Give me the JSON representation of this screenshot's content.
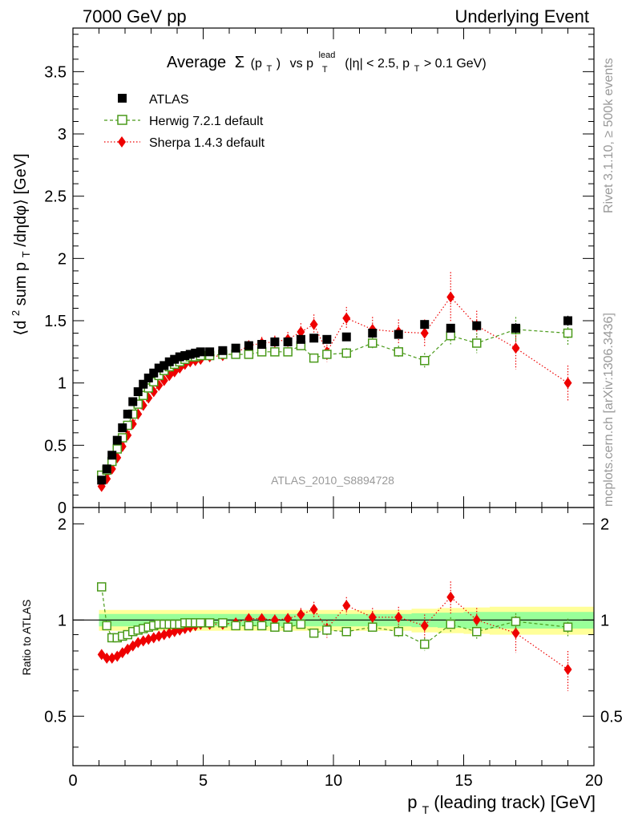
{
  "header": {
    "left": "7000 GeV pp",
    "right": "Underlying Event"
  },
  "side": {
    "rivet": "Rivet 3.1.10, ≥ 500k events",
    "mcplots": "mcplots.cern.ch [arXiv:1306.3436]"
  },
  "colors": {
    "atlas": "#000000",
    "herwig": "#4a9a1a",
    "sherpa": "#ee0000",
    "band_inner": "#99ff99",
    "band_outer": "#ffff99"
  },
  "chart_data": [
    {
      "type": "scatter",
      "title_main": "Average",
      "title_sigma": "Σ",
      "title_pt_arg": "(p",
      "title_pt_arg_sub": "T",
      "title_pt_arg_close": ")",
      "title_vs": "vs p",
      "title_vs_sub": "T",
      "title_vs_sup": "lead",
      "title_cuts": "(|η| < 2.5, p",
      "title_cuts_sub": "T",
      "title_cuts_tail": " > 0.1 GeV)",
      "ylabel": "⟨d² sum p_T/dηdφ⟩ [GeV]",
      "ylabel_a": "⟨d",
      "ylabel_sup": "2",
      "ylabel_b": " sum p",
      "ylabel_sub": "T",
      "ylabel_c": "/dηdφ⟩ [GeV]",
      "watermark": "ATLAS_2010_S8894728",
      "xlim": [
        0,
        20
      ],
      "ylim": [
        0,
        3.85
      ],
      "yticks": [
        "0",
        "0.5",
        "1",
        "1.5",
        "2",
        "2.5",
        "3",
        "3.5"
      ],
      "legend": [
        {
          "name": "ATLAS"
        },
        {
          "name": "Herwig 7.2.1 default"
        },
        {
          "name": "Sherpa 1.4.3 default"
        }
      ],
      "x": [
        1.1,
        1.3,
        1.5,
        1.7,
        1.9,
        2.1,
        2.3,
        2.5,
        2.7,
        2.9,
        3.1,
        3.3,
        3.5,
        3.7,
        3.9,
        4.1,
        4.3,
        4.5,
        4.7,
        4.9,
        5.25,
        5.75,
        6.25,
        6.75,
        7.25,
        7.75,
        8.25,
        8.75,
        9.25,
        9.75,
        10.5,
        11.5,
        12.5,
        13.5,
        14.5,
        15.5,
        17.0,
        19.0
      ],
      "series": [
        {
          "name": "ATLAS",
          "values": [
            0.22,
            0.31,
            0.42,
            0.54,
            0.64,
            0.75,
            0.85,
            0.93,
            0.99,
            1.04,
            1.08,
            1.12,
            1.14,
            1.17,
            1.19,
            1.21,
            1.22,
            1.23,
            1.24,
            1.25,
            1.25,
            1.26,
            1.28,
            1.3,
            1.31,
            1.33,
            1.33,
            1.35,
            1.36,
            1.35,
            1.37,
            1.4,
            1.39,
            1.47,
            1.44,
            1.46,
            1.44,
            1.5
          ],
          "errors": [
            0.01,
            0.01,
            0.01,
            0.01,
            0.01,
            0.01,
            0.01,
            0.01,
            0.01,
            0.01,
            0.01,
            0.01,
            0.01,
            0.01,
            0.01,
            0.01,
            0.01,
            0.01,
            0.01,
            0.01,
            0.01,
            0.01,
            0.01,
            0.01,
            0.01,
            0.01,
            0.01,
            0.01,
            0.01,
            0.01,
            0.02,
            0.02,
            0.02,
            0.03,
            0.03,
            0.03,
            0.04,
            0.04
          ]
        },
        {
          "name": "Herwig 7.2.1 default",
          "values": [
            0.26,
            0.3,
            0.37,
            0.47,
            0.56,
            0.66,
            0.75,
            0.83,
            0.9,
            0.96,
            1.01,
            1.06,
            1.1,
            1.13,
            1.15,
            1.17,
            1.19,
            1.21,
            1.21,
            1.22,
            1.22,
            1.23,
            1.23,
            1.23,
            1.25,
            1.25,
            1.25,
            1.3,
            1.2,
            1.23,
            1.24,
            1.32,
            1.25,
            1.18,
            1.38,
            1.32,
            1.43,
            1.4
          ],
          "errors": [
            0.01,
            0.01,
            0.01,
            0.01,
            0.01,
            0.01,
            0.01,
            0.01,
            0.01,
            0.01,
            0.01,
            0.01,
            0.01,
            0.01,
            0.01,
            0.01,
            0.01,
            0.01,
            0.01,
            0.01,
            0.02,
            0.02,
            0.02,
            0.02,
            0.02,
            0.03,
            0.03,
            0.03,
            0.03,
            0.04,
            0.04,
            0.05,
            0.05,
            0.06,
            0.07,
            0.08,
            0.1,
            0.1
          ]
        },
        {
          "name": "Sherpa 1.4.3 default",
          "values": [
            0.17,
            0.23,
            0.31,
            0.4,
            0.49,
            0.58,
            0.67,
            0.75,
            0.82,
            0.88,
            0.93,
            0.98,
            1.02,
            1.06,
            1.09,
            1.12,
            1.15,
            1.17,
            1.18,
            1.19,
            1.21,
            1.22,
            1.24,
            1.3,
            1.32,
            1.33,
            1.35,
            1.41,
            1.47,
            1.25,
            1.52,
            1.43,
            1.41,
            1.4,
            1.69,
            1.46,
            1.28,
            1.0
          ],
          "errors": [
            0.01,
            0.01,
            0.01,
            0.01,
            0.01,
            0.01,
            0.01,
            0.01,
            0.01,
            0.01,
            0.01,
            0.01,
            0.01,
            0.01,
            0.01,
            0.01,
            0.01,
            0.01,
            0.01,
            0.01,
            0.02,
            0.02,
            0.03,
            0.04,
            0.05,
            0.05,
            0.06,
            0.07,
            0.08,
            0.08,
            0.09,
            0.1,
            0.1,
            0.11,
            0.2,
            0.12,
            0.17,
            0.14
          ]
        }
      ]
    },
    {
      "type": "scatter",
      "ylabel": "Ratio to ATLAS",
      "xlabel": "p_T (leading track) [GeV]",
      "xlabel_a": "p",
      "xlabel_sub": "T",
      "xlabel_b": " (leading track) [GeV]",
      "xlim": [
        0,
        20
      ],
      "ylim": [
        0.35,
        2.25
      ],
      "xticks": [
        "0",
        "5",
        "10",
        "15",
        "20"
      ],
      "yticks": [
        "0.5",
        "1",
        "2"
      ],
      "band_x": [
        1.0,
        1.2,
        1.4,
        1.6,
        1.8,
        2.0,
        2.2,
        2.4,
        2.6,
        2.8,
        3.0,
        3.2,
        3.4,
        3.6,
        3.8,
        4.0,
        4.2,
        4.4,
        4.6,
        4.8,
        5.0,
        5.5,
        6.0,
        6.5,
        7.0,
        7.5,
        8.0,
        8.5,
        9.0,
        9.5,
        10.0,
        11.0,
        12.0,
        13.0,
        14.0,
        15.0,
        16.0,
        18.0,
        20.0
      ],
      "band_inner": [
        0.045,
        0.045,
        0.045,
        0.045,
        0.045,
        0.045,
        0.045,
        0.045,
        0.045,
        0.045,
        0.045,
        0.045,
        0.045,
        0.045,
        0.045,
        0.045,
        0.045,
        0.045,
        0.045,
        0.045,
        0.045,
        0.045,
        0.045,
        0.045,
        0.045,
        0.045,
        0.045,
        0.045,
        0.045,
        0.045,
        0.045,
        0.045,
        0.045,
        0.05,
        0.055,
        0.06,
        0.06,
        0.06,
        0.06
      ],
      "band_outer": [
        0.075,
        0.075,
        0.075,
        0.075,
        0.075,
        0.075,
        0.075,
        0.075,
        0.075,
        0.075,
        0.075,
        0.075,
        0.075,
        0.075,
        0.075,
        0.075,
        0.075,
        0.075,
        0.075,
        0.075,
        0.075,
        0.075,
        0.075,
        0.075,
        0.075,
        0.075,
        0.075,
        0.075,
        0.075,
        0.075,
        0.075,
        0.075,
        0.075,
        0.085,
        0.09,
        0.095,
        0.1,
        0.1,
        0.1
      ],
      "x": [
        1.1,
        1.3,
        1.5,
        1.7,
        1.9,
        2.1,
        2.3,
        2.5,
        2.7,
        2.9,
        3.1,
        3.3,
        3.5,
        3.7,
        3.9,
        4.1,
        4.3,
        4.5,
        4.7,
        4.9,
        5.25,
        5.75,
        6.25,
        6.75,
        7.25,
        7.75,
        8.25,
        8.75,
        9.25,
        9.75,
        10.5,
        11.5,
        12.5,
        13.5,
        14.5,
        15.5,
        17.0,
        19.0
      ],
      "series": [
        {
          "name": "Herwig 7.2.1 default",
          "values": [
            1.27,
            0.96,
            0.88,
            0.88,
            0.89,
            0.9,
            0.92,
            0.93,
            0.94,
            0.95,
            0.96,
            0.97,
            0.97,
            0.97,
            0.97,
            0.97,
            0.98,
            0.98,
            0.98,
            0.98,
            0.98,
            0.98,
            0.96,
            0.96,
            0.96,
            0.95,
            0.95,
            0.97,
            0.91,
            0.93,
            0.92,
            0.95,
            0.92,
            0.84,
            0.97,
            0.92,
            0.99,
            0.95
          ],
          "errors": [
            0.02,
            0.02,
            0.01,
            0.01,
            0.01,
            0.01,
            0.01,
            0.01,
            0.01,
            0.01,
            0.01,
            0.01,
            0.01,
            0.01,
            0.01,
            0.01,
            0.01,
            0.01,
            0.01,
            0.01,
            0.01,
            0.01,
            0.01,
            0.01,
            0.01,
            0.02,
            0.02,
            0.02,
            0.02,
            0.03,
            0.03,
            0.03,
            0.04,
            0.04,
            0.05,
            0.05,
            0.06,
            0.06
          ]
        },
        {
          "name": "Sherpa 1.4.3 default",
          "values": [
            0.78,
            0.76,
            0.76,
            0.77,
            0.79,
            0.81,
            0.83,
            0.85,
            0.86,
            0.87,
            0.88,
            0.89,
            0.9,
            0.91,
            0.92,
            0.93,
            0.94,
            0.95,
            0.96,
            0.97,
            0.97,
            0.97,
            0.98,
            1.01,
            1.01,
            1.0,
            1.01,
            1.04,
            1.08,
            0.94,
            1.11,
            1.02,
            1.02,
            0.96,
            1.18,
            1.0,
            0.91,
            0.7
          ],
          "errors": [
            0.01,
            0.01,
            0.01,
            0.01,
            0.01,
            0.01,
            0.01,
            0.01,
            0.01,
            0.01,
            0.01,
            0.01,
            0.01,
            0.01,
            0.01,
            0.01,
            0.01,
            0.01,
            0.01,
            0.01,
            0.01,
            0.02,
            0.02,
            0.03,
            0.03,
            0.04,
            0.04,
            0.05,
            0.06,
            0.06,
            0.07,
            0.07,
            0.08,
            0.08,
            0.14,
            0.09,
            0.12,
            0.1
          ]
        }
      ]
    }
  ]
}
